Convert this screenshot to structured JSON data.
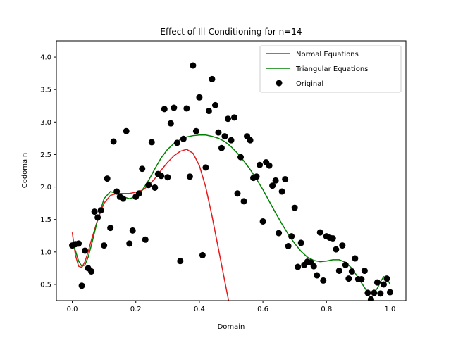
{
  "chart_data": {
    "type": "line",
    "title": "Effect of Ill-Conditioning for n=14",
    "xlabel": "Domain",
    "ylabel": "Codomain",
    "xlim": [
      -0.05,
      1.05
    ],
    "ylim": [
      0.25,
      4.25
    ],
    "xticks": [
      0.0,
      0.2,
      0.4,
      0.6,
      0.8,
      1.0
    ],
    "xtick_labels": [
      "0.0",
      "0.2",
      "0.4",
      "0.6",
      "0.8",
      "1.0"
    ],
    "yticks": [
      0.5,
      1.0,
      1.5,
      2.0,
      2.5,
      3.0,
      3.5,
      4.0
    ],
    "ytick_labels": [
      "0.5",
      "1.0",
      "1.5",
      "2.0",
      "2.5",
      "3.0",
      "3.5",
      "4.0"
    ],
    "grid": false,
    "legend_position": "top-right",
    "series": [
      {
        "name": "Normal Equations",
        "kind": "line",
        "color": "#e41a1c",
        "x": [
          0.0,
          0.01,
          0.02,
          0.03,
          0.04,
          0.05,
          0.06,
          0.08,
          0.1,
          0.12,
          0.14,
          0.16,
          0.18,
          0.2,
          0.22,
          0.24,
          0.26,
          0.28,
          0.3,
          0.32,
          0.34,
          0.36,
          0.38,
          0.4,
          0.42,
          0.44,
          0.46,
          0.47,
          0.48,
          0.49,
          0.5,
          0.51
        ],
        "y": [
          1.3,
          0.95,
          0.78,
          0.76,
          0.85,
          1.0,
          1.18,
          1.5,
          1.75,
          1.87,
          1.9,
          1.9,
          1.9,
          1.92,
          1.95,
          2.02,
          2.13,
          2.26,
          2.38,
          2.48,
          2.55,
          2.58,
          2.52,
          2.33,
          2.0,
          1.55,
          1.05,
          0.8,
          0.55,
          0.3,
          0.05,
          -0.2
        ]
      },
      {
        "name": "Triangular Equations",
        "kind": "line",
        "color": "#008000",
        "x": [
          0.0,
          0.01,
          0.02,
          0.03,
          0.04,
          0.05,
          0.06,
          0.08,
          0.1,
          0.12,
          0.14,
          0.16,
          0.18,
          0.2,
          0.22,
          0.24,
          0.26,
          0.28,
          0.3,
          0.32,
          0.34,
          0.36,
          0.38,
          0.4,
          0.42,
          0.44,
          0.46,
          0.48,
          0.5,
          0.52,
          0.54,
          0.56,
          0.58,
          0.6,
          0.62,
          0.64,
          0.66,
          0.68,
          0.7,
          0.72,
          0.74,
          0.76,
          0.78,
          0.8,
          0.82,
          0.84,
          0.86,
          0.88,
          0.9,
          0.92,
          0.93,
          0.94,
          0.95,
          0.96,
          0.97,
          0.98,
          0.99,
          1.0
        ],
        "y": [
          1.12,
          1.02,
          0.86,
          0.78,
          0.8,
          0.92,
          1.1,
          1.5,
          1.82,
          1.93,
          1.9,
          1.85,
          1.82,
          1.85,
          1.95,
          2.1,
          2.28,
          2.45,
          2.58,
          2.67,
          2.73,
          2.77,
          2.79,
          2.8,
          2.8,
          2.78,
          2.75,
          2.7,
          2.62,
          2.52,
          2.4,
          2.27,
          2.12,
          1.96,
          1.78,
          1.6,
          1.43,
          1.27,
          1.13,
          1.01,
          0.92,
          0.87,
          0.85,
          0.86,
          0.88,
          0.88,
          0.84,
          0.75,
          0.6,
          0.45,
          0.38,
          0.36,
          0.38,
          0.44,
          0.54,
          0.62,
          0.6,
          0.5
        ]
      },
      {
        "name": "Original",
        "kind": "scatter",
        "color": "#000000",
        "x": [
          0.0,
          0.01,
          0.02,
          0.03,
          0.04,
          0.05,
          0.06,
          0.07,
          0.08,
          0.09,
          0.1,
          0.11,
          0.12,
          0.13,
          0.14,
          0.15,
          0.16,
          0.17,
          0.18,
          0.19,
          0.2,
          0.21,
          0.22,
          0.23,
          0.24,
          0.25,
          0.26,
          0.27,
          0.28,
          0.29,
          0.3,
          0.31,
          0.32,
          0.33,
          0.34,
          0.35,
          0.36,
          0.37,
          0.38,
          0.39,
          0.4,
          0.41,
          0.42,
          0.43,
          0.44,
          0.45,
          0.46,
          0.47,
          0.48,
          0.49,
          0.5,
          0.51,
          0.52,
          0.53,
          0.54,
          0.55,
          0.56,
          0.57,
          0.58,
          0.59,
          0.6,
          0.61,
          0.62,
          0.63,
          0.64,
          0.65,
          0.66,
          0.67,
          0.68,
          0.69,
          0.7,
          0.71,
          0.72,
          0.73,
          0.74,
          0.75,
          0.76,
          0.77,
          0.78,
          0.79,
          0.8,
          0.81,
          0.82,
          0.83,
          0.84,
          0.85,
          0.86,
          0.87,
          0.88,
          0.89,
          0.9,
          0.91,
          0.92,
          0.93,
          0.94,
          0.95,
          0.96,
          0.97,
          0.98,
          0.99,
          1.0
        ],
        "y": [
          1.1,
          1.12,
          1.13,
          0.48,
          1.02,
          0.75,
          0.7,
          1.62,
          1.53,
          1.64,
          1.1,
          2.13,
          1.37,
          2.7,
          1.93,
          1.85,
          1.82,
          2.86,
          1.13,
          1.33,
          1.85,
          1.9,
          2.28,
          1.19,
          2.03,
          2.69,
          1.99,
          2.2,
          2.17,
          3.2,
          2.15,
          2.98,
          3.22,
          2.68,
          0.86,
          2.74,
          3.21,
          2.16,
          3.87,
          2.86,
          3.38,
          0.95,
          2.3,
          3.17,
          3.66,
          3.26,
          2.84,
          2.6,
          2.78,
          3.05,
          2.72,
          3.07,
          1.9,
          2.46,
          1.78,
          2.78,
          2.72,
          2.14,
          2.16,
          2.34,
          1.47,
          2.38,
          2.33,
          2.02,
          2.1,
          1.29,
          1.93,
          2.12,
          1.09,
          1.24,
          1.68,
          0.77,
          1.14,
          0.8,
          0.85,
          0.84,
          0.78,
          0.64,
          1.3,
          0.56,
          1.24,
          1.22,
          1.21,
          1.04,
          0.71,
          1.1,
          0.8,
          0.59,
          0.7,
          0.9,
          0.58,
          0.58,
          0.71,
          0.37,
          0.27,
          0.37,
          0.53,
          0.36,
          0.5,
          0.59,
          0.38
        ]
      }
    ]
  }
}
